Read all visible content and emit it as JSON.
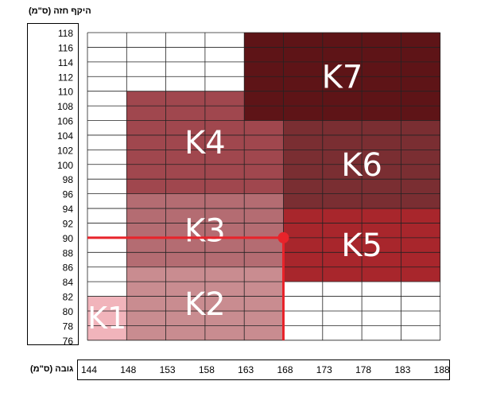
{
  "chart_data": {
    "type": "heatmap",
    "title": "",
    "ylabel": "היקף חזה (ס\"מ)",
    "xlabel": "גובה (ס\"מ)",
    "x_ticks": [
      "144",
      "148",
      "153",
      "158",
      "163",
      "168",
      "173",
      "178",
      "183",
      "188"
    ],
    "y_ticks": [
      "118",
      "116",
      "114",
      "112",
      "110",
      "108",
      "106",
      "104",
      "102",
      "100",
      "98",
      "96",
      "94",
      "92",
      "90",
      "88",
      "86",
      "84",
      "82",
      "80",
      "78",
      "76"
    ],
    "grid": true,
    "regions": [
      {
        "label": "K1",
        "height_from": 144,
        "height_to": 148,
        "chest_from": 76,
        "chest_to": 82,
        "color": "#f1b4bb"
      },
      {
        "label": "K2",
        "height_from": 148,
        "height_to": 168,
        "chest_from": 76,
        "chest_to": 86,
        "color": "#c98c90"
      },
      {
        "label": "K3",
        "height_from": 148,
        "height_to": 168,
        "chest_from": 86,
        "chest_to": 96,
        "color": "#b46c72"
      },
      {
        "label": "K4",
        "height_from": 148,
        "height_to": 168,
        "chest_from": 96,
        "chest_to": 110,
        "color": "#a0474e"
      },
      {
        "label": "K5",
        "height_from": 168,
        "height_to": 188,
        "chest_from": 84,
        "chest_to": 94,
        "color": "#a8262c"
      },
      {
        "label": "K6",
        "height_from": 168,
        "height_to": 188,
        "chest_from": 94,
        "chest_to": 106,
        "color": "#7a2e32"
      },
      {
        "label": "K7",
        "height_from": 163,
        "height_to": 188,
        "chest_from": 106,
        "chest_to": 118,
        "color": "#5e1417"
      }
    ],
    "marker": {
      "height": 168,
      "chest": 90,
      "color": "#e8232a"
    }
  }
}
